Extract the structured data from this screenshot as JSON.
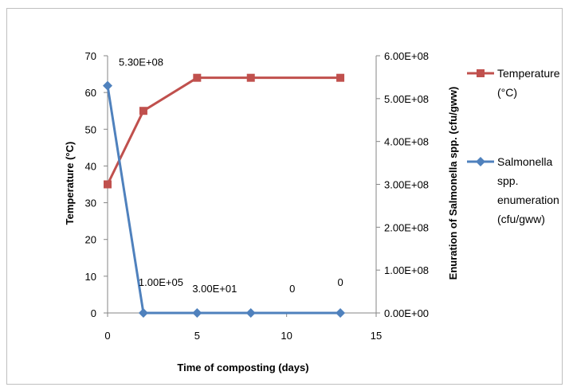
{
  "chart_data": {
    "type": "line",
    "x": [
      0,
      2,
      5,
      8,
      13
    ],
    "xlabel": "Time of composting (days)",
    "xlim": [
      0,
      15
    ],
    "xticks": [
      "0",
      "5",
      "10",
      "15"
    ],
    "ylabel_left": "Temperature (°C)",
    "ylim_left": [
      0,
      70
    ],
    "yticks_left": [
      "0",
      "10",
      "20",
      "30",
      "40",
      "50",
      "60",
      "70"
    ],
    "ylabel_right": "Enuration of Salmonella spp. (cfu/gww)",
    "ylim_right": [
      0,
      600000000
    ],
    "yticks_right": [
      "0.00E+00",
      "1.00E+08",
      "2.00E+08",
      "3.00E+08",
      "4.00E+08",
      "5.00E+08",
      "6.00E+08"
    ],
    "grid": false,
    "legend_position": "right",
    "series": [
      {
        "name": "Temperature (°C)",
        "legend_lines": [
          "Temperature",
          "(°C)"
        ],
        "axis": "left",
        "color": "#c0504d",
        "marker": "square",
        "values": [
          35,
          55,
          64,
          64,
          64
        ]
      },
      {
        "name": "Salmonella spp. enumeration (cfu/gww)",
        "legend_lines": [
          "Salmonella",
          "spp.",
          "enumeration",
          "(cfu/gww)"
        ],
        "axis": "right",
        "color": "#4f81bd",
        "marker": "diamond",
        "values": [
          530000000,
          100000,
          30,
          0,
          0
        ],
        "data_labels": [
          "5.30E+08",
          "1.00E+05",
          "3.00E+01",
          "0",
          "0"
        ]
      }
    ]
  }
}
